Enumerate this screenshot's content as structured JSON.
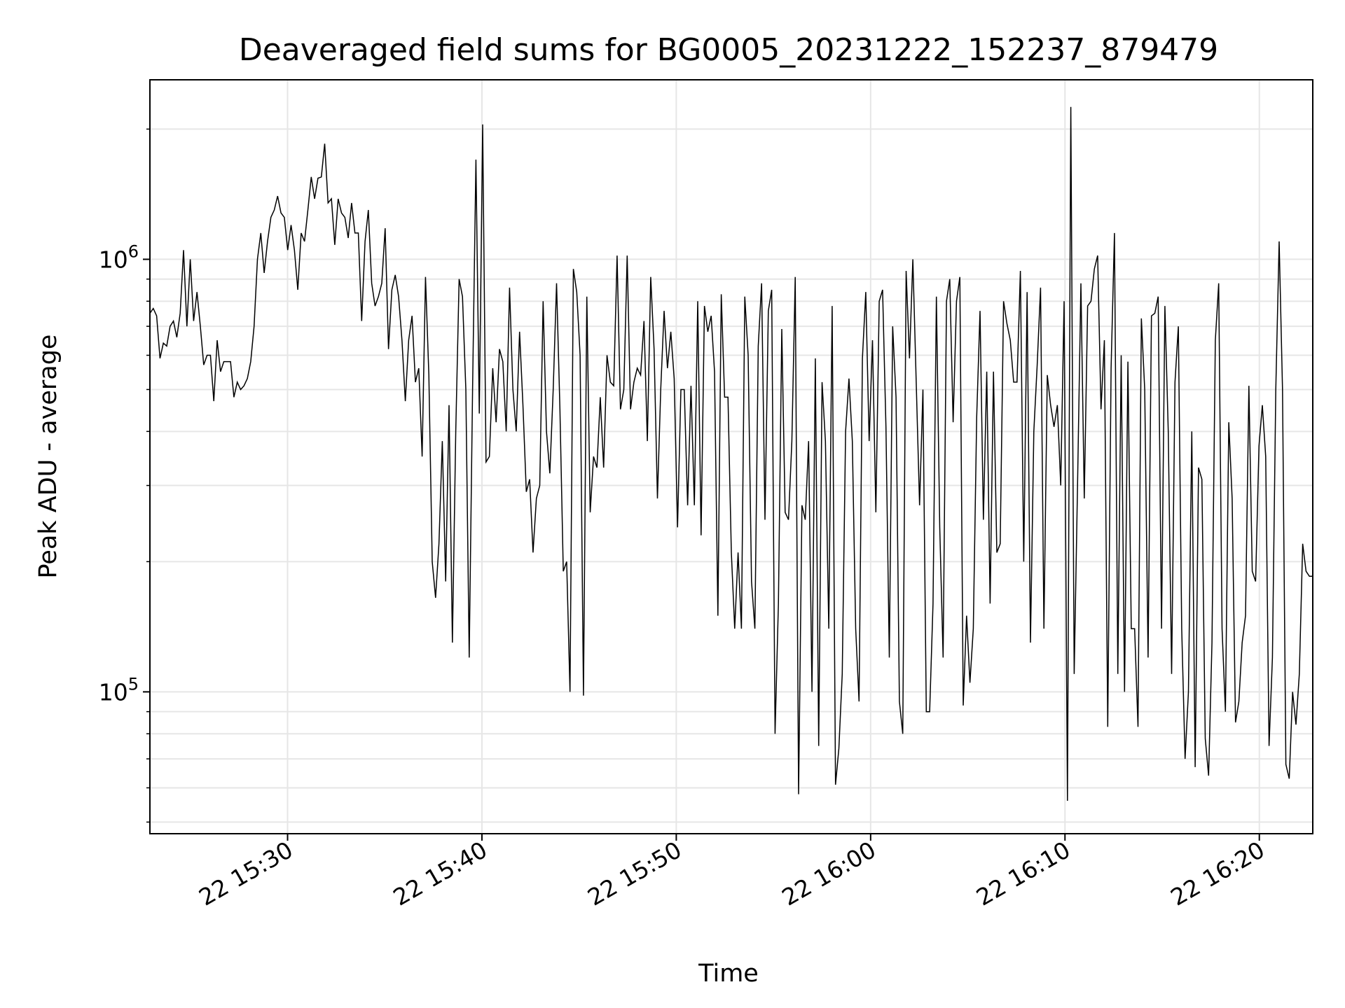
{
  "chart_data": {
    "type": "line",
    "title": "Deaveraged field sums for BG0005_20231222_152237_879479",
    "xlabel": "Time",
    "ylabel": "Peak ADU - average",
    "xtick_labels": [
      "22 15:30",
      "22 15:40",
      "22 15:50",
      "22 16:00",
      "22 16:10",
      "22 16:20"
    ],
    "ytick_labels": [
      {
        "base": "10",
        "exp": "5"
      },
      {
        "base": "10",
        "exp": "6"
      }
    ],
    "x_range": [
      "2023-12-22T15:22:55",
      "2023-12-22T16:22:45"
    ],
    "y_scale": "log",
    "ylim": [
      47000,
      2600000
    ],
    "grid": true,
    "line_color": "#000000",
    "grid_color": "#e6e6e6",
    "series": [
      {
        "x_start": "2023-12-22T15:22:55",
        "x_end": "2023-12-22T16:22:45",
        "y": [
          750000,
          770000,
          740000,
          590000,
          640000,
          630000,
          700000,
          720000,
          660000,
          750000,
          1050000,
          700000,
          1000000,
          720000,
          840000,
          700000,
          570000,
          600000,
          600000,
          470000,
          650000,
          550000,
          580000,
          580000,
          580000,
          480000,
          520000,
          500000,
          510000,
          530000,
          580000,
          700000,
          1000000,
          1150000,
          930000,
          1100000,
          1250000,
          1300000,
          1400000,
          1280000,
          1250000,
          1050000,
          1200000,
          1050000,
          850000,
          1150000,
          1100000,
          1300000,
          1550000,
          1380000,
          1540000,
          1550000,
          1850000,
          1350000,
          1380000,
          1080000,
          1380000,
          1280000,
          1250000,
          1120000,
          1350000,
          1150000,
          1150000,
          720000,
          1100000,
          1300000,
          880000,
          780000,
          820000,
          880000,
          1180000,
          620000,
          850000,
          920000,
          820000,
          650000,
          470000,
          650000,
          740000,
          520000,
          560000,
          350000,
          910000,
          540000,
          200000,
          165000,
          220000,
          380000,
          180000,
          460000,
          130000,
          400000,
          900000,
          820000,
          500000,
          120000,
          500000,
          1700000,
          440000,
          2050000,
          340000,
          350000,
          560000,
          420000,
          620000,
          580000,
          400000,
          860000,
          500000,
          400000,
          680000,
          460000,
          290000,
          310000,
          210000,
          280000,
          300000,
          800000,
          400000,
          320000,
          500000,
          880000,
          450000,
          190000,
          200000,
          100000,
          950000,
          840000,
          600000,
          98000,
          820000,
          260000,
          350000,
          330000,
          480000,
          330000,
          600000,
          520000,
          510000,
          1020000,
          450000,
          500000,
          1020000,
          450000,
          520000,
          560000,
          540000,
          720000,
          380000,
          910000,
          620000,
          280000,
          500000,
          760000,
          560000,
          680000,
          530000,
          240000,
          500000,
          500000,
          270000,
          510000,
          270000,
          800000,
          230000,
          780000,
          680000,
          740000,
          550000,
          150000,
          830000,
          480000,
          480000,
          210000,
          140000,
          210000,
          140000,
          820000,
          600000,
          180000,
          140000,
          630000,
          880000,
          250000,
          760000,
          850000,
          80000,
          160000,
          690000,
          260000,
          250000,
          380000,
          910000,
          58000,
          270000,
          250000,
          380000,
          100000,
          590000,
          75000,
          520000,
          380000,
          140000,
          780000,
          61000,
          74000,
          110000,
          400000,
          530000,
          380000,
          140000,
          95000,
          590000,
          840000,
          380000,
          650000,
          260000,
          800000,
          850000,
          410000,
          120000,
          700000,
          480000,
          95000,
          80000,
          940000,
          590000,
          1000000,
          520000,
          270000,
          500000,
          90000,
          90000,
          160000,
          820000,
          240000,
          120000,
          800000,
          900000,
          420000,
          800000,
          910000,
          93000,
          150000,
          105000,
          140000,
          430000,
          760000,
          250000,
          550000,
          160000,
          550000,
          210000,
          220000,
          800000,
          710000,
          650000,
          520000,
          520000,
          940000,
          200000,
          840000,
          130000,
          400000,
          570000,
          860000,
          140000,
          540000,
          460000,
          410000,
          460000,
          300000,
          800000,
          56000,
          2250000,
          110000,
          300000,
          880000,
          280000,
          780000,
          800000,
          950000,
          1020000,
          450000,
          650000,
          83000,
          560000,
          1150000,
          110000,
          600000,
          100000,
          580000,
          140000,
          140000,
          83000,
          730000,
          500000,
          120000,
          740000,
          750000,
          820000,
          140000,
          780000,
          400000,
          110000,
          520000,
          700000,
          140000,
          70000,
          100000,
          400000,
          67000,
          330000,
          310000,
          78000,
          64000,
          130000,
          650000,
          880000,
          140000,
          90000,
          420000,
          280000,
          85000,
          95000,
          130000,
          150000,
          510000,
          190000,
          180000,
          370000,
          460000,
          350000,
          75000,
          120000,
          500000,
          1100000,
          500000,
          68000,
          63000,
          100000,
          84000,
          110000,
          220000,
          190000,
          185000,
          185000
        ]
      }
    ]
  }
}
